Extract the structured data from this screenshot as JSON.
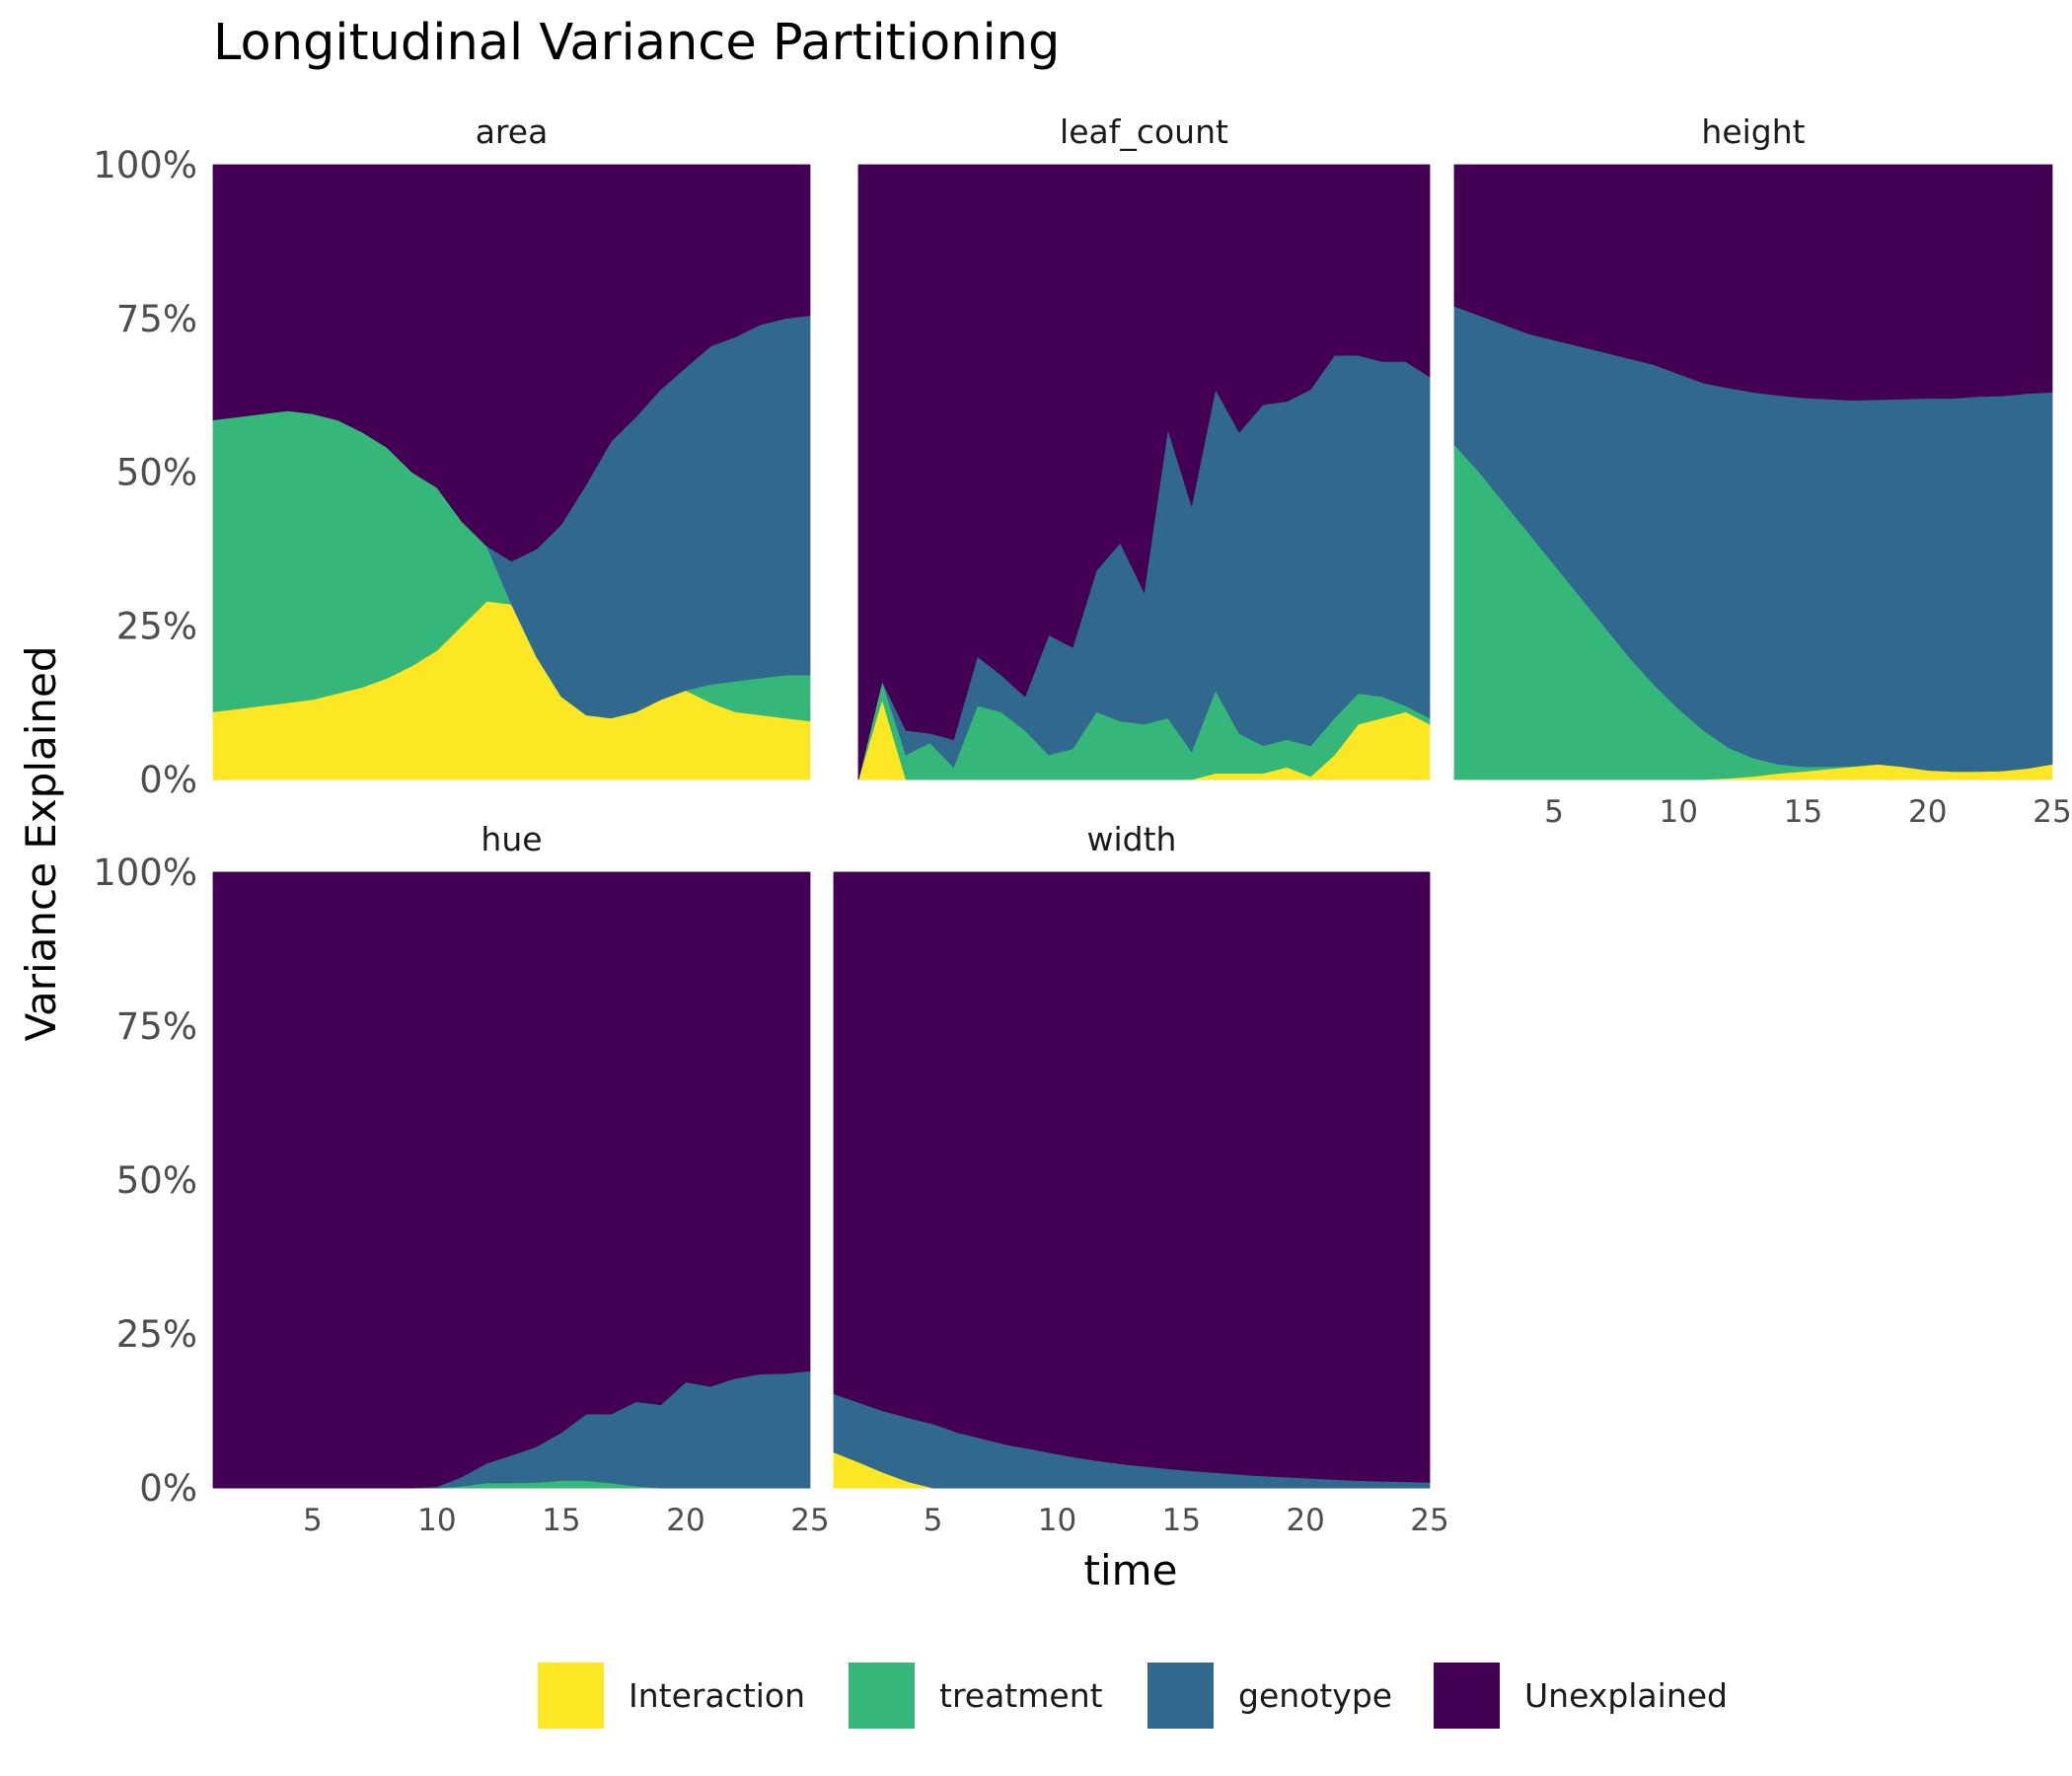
{
  "chart_data": {
    "type": "area",
    "title": "Longitudinal Variance Partitioning",
    "xlabel": "time",
    "ylabel": "Variance Explained",
    "xlim": [
      1,
      25
    ],
    "ylim": [
      0,
      1
    ],
    "x_ticks": [
      5,
      10,
      15,
      20,
      25
    ],
    "y_ticks": [
      0,
      0.25,
      0.5,
      0.75,
      1.0
    ],
    "y_tick_labels": [
      "0%",
      "25%",
      "50%",
      "75%",
      "100%"
    ],
    "legend_position": "bottom",
    "stack_order": [
      "Interaction",
      "treatment",
      "genotype",
      "Unexplained"
    ],
    "series": [
      {
        "name": "Interaction",
        "color": "#fde725"
      },
      {
        "name": "treatment",
        "color": "#35b779"
      },
      {
        "name": "genotype",
        "color": "#31688e"
      },
      {
        "name": "Unexplained",
        "color": "#440154"
      }
    ],
    "panels": [
      {
        "name": "area",
        "x": [
          1,
          2,
          3,
          4,
          5,
          6,
          7,
          8,
          9,
          10,
          11,
          12,
          13,
          14,
          15,
          16,
          17,
          18,
          19,
          20,
          21,
          22,
          23,
          24,
          25
        ],
        "Interaction": [
          0.11,
          0.115,
          0.12,
          0.125,
          0.13,
          0.14,
          0.15,
          0.165,
          0.185,
          0.21,
          0.25,
          0.29,
          0.285,
          0.2,
          0.135,
          0.105,
          0.1,
          0.11,
          0.13,
          0.145,
          0.125,
          0.11,
          0.105,
          0.1,
          0.095
        ],
        "treatment": [
          0.475,
          0.475,
          0.475,
          0.475,
          0.465,
          0.445,
          0.415,
          0.375,
          0.315,
          0.265,
          0.17,
          0.09,
          0.0,
          0.0,
          0.0,
          0.0,
          0.0,
          0.0,
          0.0,
          0.0,
          0.03,
          0.05,
          0.06,
          0.07,
          0.075
        ],
        "genotype": [
          0.0,
          0.0,
          0.0,
          0.0,
          0.0,
          0.0,
          0.0,
          0.0,
          0.0,
          0.0,
          0.0,
          0.0,
          0.07,
          0.175,
          0.28,
          0.375,
          0.45,
          0.48,
          0.505,
          0.525,
          0.55,
          0.56,
          0.575,
          0.58,
          0.585
        ]
      },
      {
        "name": "leaf_count",
        "x": [
          1,
          2,
          3,
          4,
          5,
          6,
          7,
          8,
          9,
          10,
          11,
          12,
          13,
          14,
          15,
          16,
          17,
          18,
          19,
          20,
          21,
          22,
          23,
          24,
          25
        ],
        "Interaction": [
          0.0,
          0.13,
          0.0,
          0.0,
          0.0,
          0.0,
          0.0,
          0.0,
          0.0,
          0.0,
          0.0,
          0.0,
          0.0,
          0.0,
          0.0,
          0.01,
          0.01,
          0.01,
          0.02,
          0.005,
          0.04,
          0.09,
          0.1,
          0.11,
          0.09
        ],
        "treatment": [
          0.0,
          0.03,
          0.04,
          0.06,
          0.02,
          0.12,
          0.11,
          0.08,
          0.04,
          0.05,
          0.11,
          0.095,
          0.09,
          0.1,
          0.045,
          0.135,
          0.065,
          0.045,
          0.045,
          0.05,
          0.06,
          0.05,
          0.035,
          0.01,
          0.01
        ],
        "genotype": [
          0.0,
          0.0,
          0.04,
          0.015,
          0.045,
          0.08,
          0.06,
          0.055,
          0.195,
          0.165,
          0.23,
          0.29,
          0.215,
          0.47,
          0.4,
          0.49,
          0.49,
          0.555,
          0.55,
          0.58,
          0.59,
          0.55,
          0.545,
          0.56,
          0.555
        ]
      },
      {
        "name": "height",
        "x": [
          1,
          2,
          3,
          4,
          5,
          6,
          7,
          8,
          9,
          10,
          11,
          12,
          13,
          14,
          15,
          16,
          17,
          18,
          19,
          20,
          21,
          22,
          23,
          24,
          25
        ],
        "Interaction": [
          0.0,
          0.0,
          0.0,
          0.0,
          0.0,
          0.0,
          0.0,
          0.0,
          0.0,
          0.0,
          0.0,
          0.002,
          0.005,
          0.01,
          0.013,
          0.017,
          0.021,
          0.025,
          0.021,
          0.015,
          0.013,
          0.013,
          0.014,
          0.018,
          0.025
        ],
        "treatment": [
          0.545,
          0.5,
          0.45,
          0.4,
          0.35,
          0.3,
          0.25,
          0.2,
          0.155,
          0.115,
          0.08,
          0.05,
          0.03,
          0.015,
          0.008,
          0.004,
          0.001,
          0.0,
          0.0,
          0.0,
          0.0,
          0.0,
          0.0,
          0.0,
          0.0
        ],
        "genotype": [
          0.225,
          0.255,
          0.29,
          0.325,
          0.365,
          0.405,
          0.445,
          0.485,
          0.52,
          0.545,
          0.565,
          0.585,
          0.595,
          0.6,
          0.6,
          0.598,
          0.595,
          0.593,
          0.598,
          0.605,
          0.607,
          0.61,
          0.61,
          0.61,
          0.605
        ]
      },
      {
        "name": "hue",
        "x": [
          1,
          2,
          3,
          4,
          5,
          6,
          7,
          8,
          9,
          10,
          11,
          12,
          13,
          14,
          15,
          16,
          17,
          18,
          19,
          20,
          21,
          22,
          23,
          24,
          25
        ],
        "Interaction": [
          0,
          0,
          0,
          0,
          0,
          0,
          0,
          0,
          0,
          0,
          0,
          0,
          0,
          0,
          0,
          0,
          0,
          0,
          0,
          0,
          0,
          0,
          0,
          0,
          0
        ],
        "treatment": [
          0,
          0,
          0,
          0,
          0,
          0,
          0,
          0,
          0,
          0,
          0.003,
          0.008,
          0.008,
          0.009,
          0.012,
          0.012,
          0.008,
          0.003,
          0,
          0,
          0,
          0,
          0,
          0,
          0
        ],
        "genotype": [
          0,
          0,
          0,
          0,
          0,
          0,
          0,
          0,
          0,
          0.002,
          0.015,
          0.032,
          0.045,
          0.058,
          0.078,
          0.108,
          0.112,
          0.137,
          0.135,
          0.172,
          0.165,
          0.178,
          0.185,
          0.186,
          0.19
        ]
      },
      {
        "name": "width",
        "x": [
          1,
          2,
          3,
          4,
          5,
          6,
          7,
          8,
          9,
          10,
          11,
          12,
          13,
          14,
          15,
          16,
          17,
          18,
          19,
          20,
          21,
          22,
          23,
          24,
          25
        ],
        "Interaction": [
          0.058,
          0.042,
          0.025,
          0.01,
          0.0,
          0.0,
          0.0,
          0.0,
          0.0,
          0.0,
          0.0,
          0.0,
          0.0,
          0.0,
          0.0,
          0.0,
          0.0,
          0.0,
          0.0,
          0.0,
          0.0,
          0.0,
          0.0,
          0.0,
          0.0
        ],
        "treatment": [
          0,
          0,
          0,
          0,
          0,
          0,
          0,
          0,
          0,
          0,
          0,
          0,
          0,
          0,
          0,
          0,
          0,
          0,
          0,
          0,
          0,
          0,
          0,
          0,
          0
        ],
        "genotype": [
          0.095,
          0.097,
          0.1,
          0.104,
          0.104,
          0.09,
          0.08,
          0.07,
          0.063,
          0.055,
          0.048,
          0.042,
          0.037,
          0.033,
          0.029,
          0.026,
          0.023,
          0.02,
          0.018,
          0.016,
          0.014,
          0.012,
          0.011,
          0.01,
          0.009
        ]
      }
    ]
  }
}
